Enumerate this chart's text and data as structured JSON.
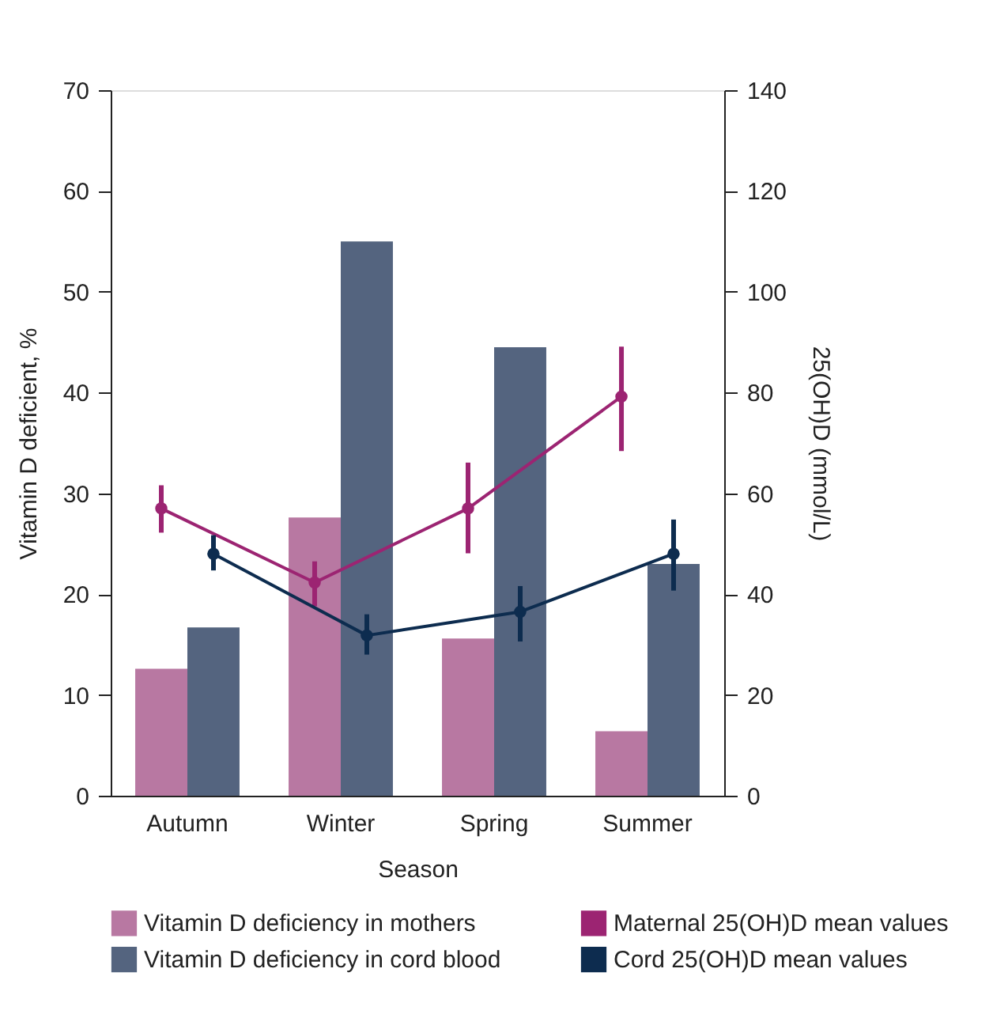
{
  "chart_data": {
    "type": "bar",
    "xlabel": "Season",
    "ylabel": "Vitamin D deficient, %",
    "y2label": "25(OH)D (mmol/L)",
    "categories": [
      "Autumn",
      "Winter",
      "Spring",
      "Summer"
    ],
    "series": [
      {
        "name": "Vitamin D deficiency in mothers",
        "color": "#b878a2",
        "values": [
          12.6,
          27.6,
          15.6,
          6.4
        ]
      },
      {
        "name": "Vitamin D deficiency in cord blood",
        "color": "#54647f",
        "values": [
          16.7,
          55.0,
          44.5,
          23.0
        ]
      },
      {
        "name": "Maternal 25(OH)D mean values",
        "type": "line",
        "axis": "y2",
        "color": "#9c2472",
        "marker": "circle",
        "values": [
          57.0,
          42.3,
          57.0,
          79.2
        ],
        "errors": [
          [
            52.2,
            61.6
          ],
          [
            37.6,
            46.5
          ],
          [
            48.1,
            66.1
          ],
          [
            68.4,
            89.1
          ]
        ]
      },
      {
        "name": "Cord 25(OH)D mean values",
        "type": "line",
        "axis": "y2",
        "color": "#0d2c4f",
        "marker": "circle",
        "values": [
          48.0,
          31.8,
          36.5,
          48.0
        ],
        "errors": [
          [
            44.7,
            51.7
          ],
          [
            28.0,
            36.0
          ],
          [
            30.6,
            41.6
          ],
          [
            40.7,
            54.8
          ]
        ]
      }
    ],
    "ylim": [
      0,
      70
    ],
    "yticks": [
      0,
      10,
      20,
      30,
      40,
      50,
      60,
      70
    ],
    "y2lim": [
      0,
      140
    ],
    "y2ticks": [
      0,
      20,
      40,
      60,
      80,
      100,
      120,
      140
    ],
    "grid": false,
    "legend": "bottom"
  }
}
